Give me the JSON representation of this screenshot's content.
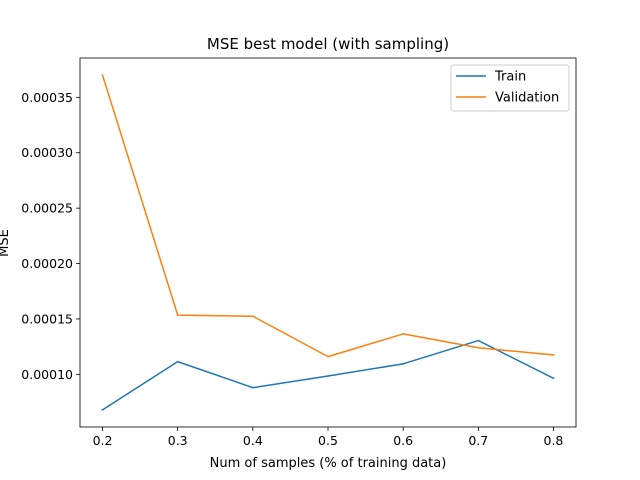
{
  "chart_data": {
    "type": "line",
    "title": "MSE best model (with sampling)",
    "xlabel": "Num of samples (% of training data)",
    "ylabel": "MSE",
    "x": [
      0.2,
      0.3,
      0.4,
      0.5,
      0.6,
      0.7,
      0.8
    ],
    "xticks": [
      "0.2",
      "0.3",
      "0.4",
      "0.5",
      "0.6",
      "0.7",
      "0.8"
    ],
    "yticks": [
      "0.00010",
      "0.00015",
      "0.00020",
      "0.00025",
      "0.00030",
      "0.00035"
    ],
    "xlim": [
      0.17,
      0.83
    ],
    "ylim": [
      5.25e-05,
      0.0003855
    ],
    "grid": false,
    "legend_position": "top-right",
    "series": [
      {
        "name": "Train",
        "color": "#1f77b4",
        "values": [
          6.8e-05,
          0.0001115,
          8.8e-05,
          9.85e-05,
          0.0001095,
          0.0001305,
          9.65e-05
        ]
      },
      {
        "name": "Validation",
        "color": "#ff7f0e",
        "values": [
          0.00037,
          0.0001535,
          0.0001525,
          0.000116,
          0.0001365,
          0.000124,
          0.0001175
        ]
      }
    ]
  }
}
